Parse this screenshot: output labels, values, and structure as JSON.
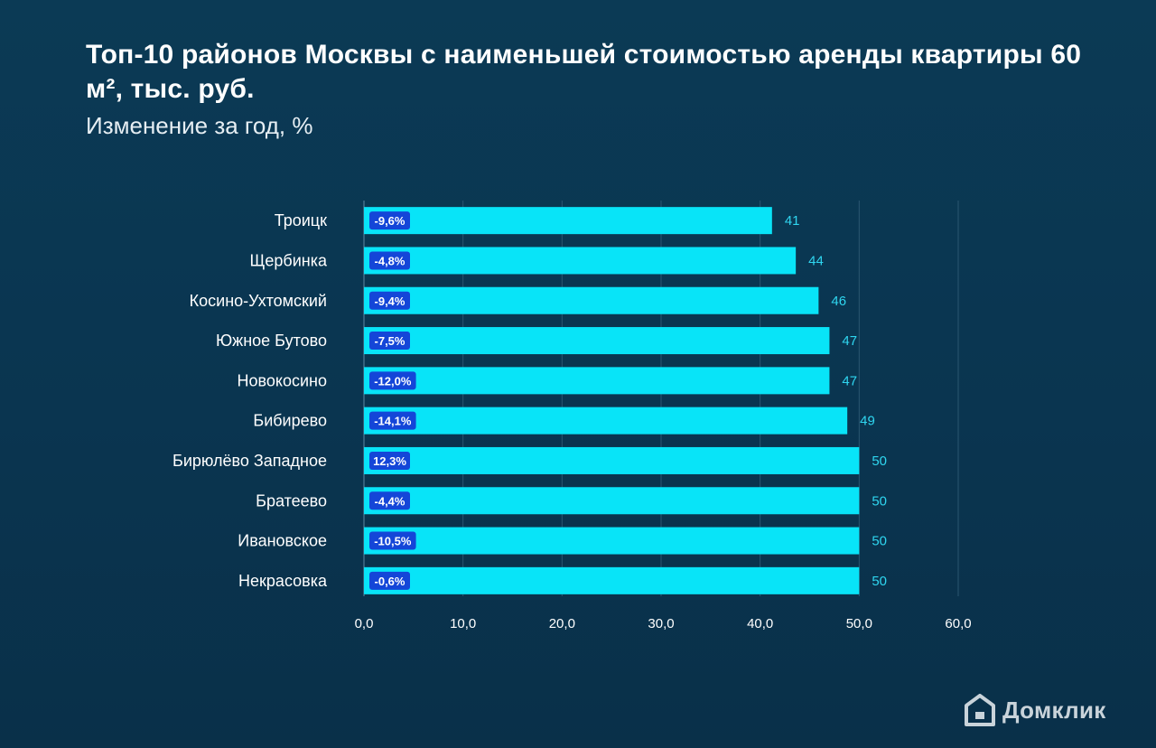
{
  "header": {
    "title": "Топ-10 районов Москвы с наименьшей стоимостью аренды квартиры 60 м², тыс. руб.",
    "subtitle": "Изменение за год, %"
  },
  "brand": {
    "name": "Домклик"
  },
  "colors": {
    "bar": "#08e4f8",
    "value_label": "#2fd6f0",
    "badge_bg": "#1446d8",
    "badge_text": "#ffffff",
    "axis_text": "#ffffff",
    "grid": "#2a5670"
  },
  "chart_data": {
    "type": "bar",
    "orientation": "horizontal",
    "title": "Топ-10 районов Москвы с наименьшей стоимостью аренды квартиры 60 м², тыс. руб.",
    "subtitle": "Изменение за год, %",
    "xlim": [
      0,
      60
    ],
    "x_ticks": [
      "0,0",
      "10,0",
      "20,0",
      "30,0",
      "40,0",
      "50,0",
      "60,0"
    ],
    "grid": true,
    "categories": [
      "Троицк",
      "Щербинка",
      "Косино-Ухтомский",
      "Южное Бутово",
      "Новокосино",
      "Бибирево",
      "Бирюлёво Западное",
      "Братеево",
      "Ивановское",
      "Некрасовка"
    ],
    "values": [
      41.2,
      43.6,
      45.9,
      47.0,
      47.0,
      48.8,
      50.0,
      50.0,
      50.0,
      50.0
    ],
    "value_labels": [
      "41",
      "44",
      "46",
      "47",
      "47",
      "49",
      "50",
      "50",
      "50",
      "50"
    ],
    "change_labels": [
      "-9,6%",
      "-4,8%",
      "-9,4%",
      "-7,5%",
      "-12,0%",
      "-14,1%",
      "12,3%",
      "-4,4%",
      "-10,5%",
      "-0,6%"
    ]
  }
}
